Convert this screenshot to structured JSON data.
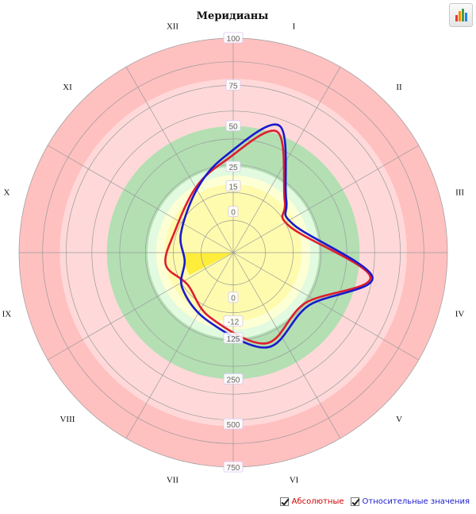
{
  "chart_data": {
    "type": "polar-radar",
    "title": "Меридианы",
    "meridians": [
      "I",
      "II",
      "III",
      "IV",
      "V",
      "VI",
      "VII",
      "VIII",
      "IX",
      "X",
      "XI",
      "XII"
    ],
    "scale_ticks_upper": [
      "100",
      "75",
      "50",
      "25",
      "15",
      "0"
    ],
    "scale_ticks_lower": [
      "0",
      "-12",
      "125",
      "250",
      "500",
      "750"
    ],
    "zone_colors": {
      "outer_red": "#ffc0c0",
      "red_light": "#ffd9d9",
      "green": "#b3dfb3",
      "pale_green": "#e2fadf",
      "pale_yellow": "#fdffd5",
      "yellow": "#fffbae",
      "highlight": "#ffed3c"
    },
    "series": [
      {
        "name": "Абсолютные",
        "color": "#dd1e2f",
        "points": [
          {
            "angle": 20,
            "r": 0.6
          },
          {
            "angle": 45,
            "r": 0.34
          },
          {
            "angle": 65,
            "r": 0.29
          },
          {
            "angle": 100,
            "r": 0.65
          },
          {
            "angle": 125,
            "r": 0.41
          },
          {
            "angle": 160,
            "r": 0.45
          },
          {
            "angle": 200,
            "r": 0.32
          },
          {
            "angle": 235,
            "r": 0.26
          },
          {
            "angle": 260,
            "r": 0.32
          },
          {
            "angle": 290,
            "r": 0.29
          },
          {
            "angle": 330,
            "r": 0.35
          },
          {
            "angle": 355,
            "r": 0.43
          }
        ]
      },
      {
        "name": "Относительные значения",
        "color": "#1a1acc",
        "points": [
          {
            "angle": 20,
            "r": 0.63
          },
          {
            "angle": 45,
            "r": 0.35
          },
          {
            "angle": 65,
            "r": 0.31
          },
          {
            "angle": 100,
            "r": 0.66
          },
          {
            "angle": 125,
            "r": 0.43
          },
          {
            "angle": 160,
            "r": 0.47
          },
          {
            "angle": 200,
            "r": 0.34
          },
          {
            "angle": 235,
            "r": 0.29
          },
          {
            "angle": 260,
            "r": 0.23
          },
          {
            "angle": 290,
            "r": 0.26
          },
          {
            "angle": 330,
            "r": 0.34
          },
          {
            "angle": 355,
            "r": 0.45
          }
        ]
      }
    ],
    "legend_position": "bottom-right",
    "grid": true
  },
  "export_button": {
    "icon": "bar-chart-icon"
  },
  "legend": {
    "absolute_label": "Абсолютные",
    "relative_label": "Относительные значения",
    "absolute_color": "#cc0000",
    "relative_color": "#1a1acc"
  }
}
